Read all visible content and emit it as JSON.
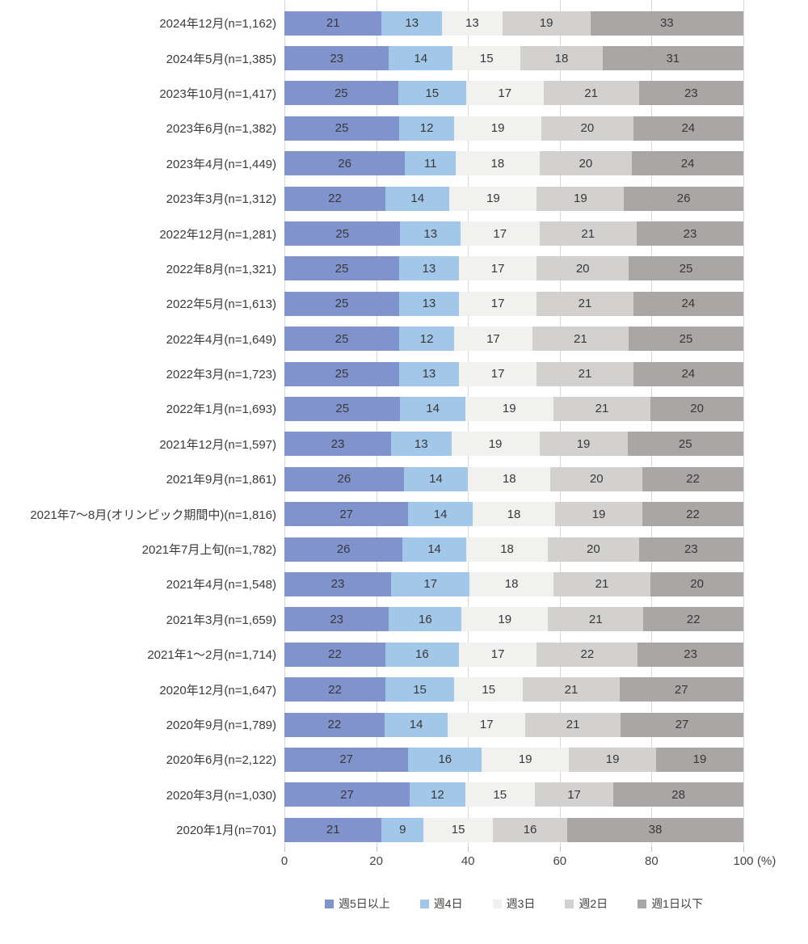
{
  "chart_data": {
    "type": "bar",
    "orientation": "horizontal-stacked",
    "title": "",
    "xlabel": "",
    "ylabel": "",
    "unit": "(%)",
    "xlim": [
      0,
      100
    ],
    "x_ticks": [
      0,
      20,
      40,
      60,
      80,
      100
    ],
    "grid": true,
    "legend_position": "bottom",
    "gridline_color": "#d8d8d8",
    "categories": [
      "2024年12月(n=1,162)",
      "2024年5月(n=1,385)",
      "2023年10月(n=1,417)",
      "2023年6月(n=1,382)",
      "2023年4月(n=1,449)",
      "2023年3月(n=1,312)",
      "2022年12月(n=1,281)",
      "2022年8月(n=1,321)",
      "2022年5月(n=1,613)",
      "2022年4月(n=1,649)",
      "2022年3月(n=1,723)",
      "2022年1月(n=1,693)",
      "2021年12月(n=1,597)",
      "2021年9月(n=1,861)",
      "2021年7〜8月(オリンピック期間中)(n=1,816)",
      "2021年7月上旬(n=1,782)",
      "2021年4月(n=1,548)",
      "2021年3月(n=1,659)",
      "2021年1〜2月(n=1,714)",
      "2020年12月(n=1,647)",
      "2020年9月(n=1,789)",
      "2020年6月(n=2,122)",
      "2020年3月(n=1,030)",
      "2020年1月(n=701)"
    ],
    "series": [
      {
        "name": "週5日以上",
        "color": "#8093cc",
        "values": [
          21,
          23,
          25,
          25,
          26,
          22,
          25,
          25,
          25,
          25,
          25,
          25,
          23,
          26,
          27,
          26,
          23,
          23,
          22,
          22,
          22,
          27,
          27,
          21
        ]
      },
      {
        "name": "週4日",
        "color": "#a2c7e8",
        "values": [
          13,
          14,
          15,
          12,
          11,
          14,
          13,
          13,
          13,
          12,
          13,
          14,
          13,
          14,
          14,
          14,
          17,
          16,
          16,
          15,
          14,
          16,
          12,
          9
        ]
      },
      {
        "name": "週3日",
        "color": "#f1f1f0",
        "values": [
          13,
          15,
          17,
          19,
          18,
          19,
          17,
          17,
          17,
          17,
          17,
          19,
          19,
          18,
          18,
          18,
          18,
          19,
          17,
          15,
          17,
          19,
          15,
          15
        ]
      },
      {
        "name": "週2日",
        "color": "#d2d1d0",
        "values": [
          19,
          18,
          21,
          20,
          20,
          19,
          21,
          20,
          21,
          21,
          21,
          21,
          19,
          20,
          19,
          20,
          21,
          21,
          22,
          21,
          21,
          19,
          17,
          16
        ]
      },
      {
        "name": "週1日以下",
        "color": "#a9a6a5",
        "values": [
          33,
          31,
          23,
          24,
          24,
          26,
          23,
          25,
          24,
          25,
          24,
          20,
          25,
          22,
          22,
          23,
          20,
          22,
          23,
          27,
          27,
          19,
          28,
          38
        ]
      }
    ]
  }
}
